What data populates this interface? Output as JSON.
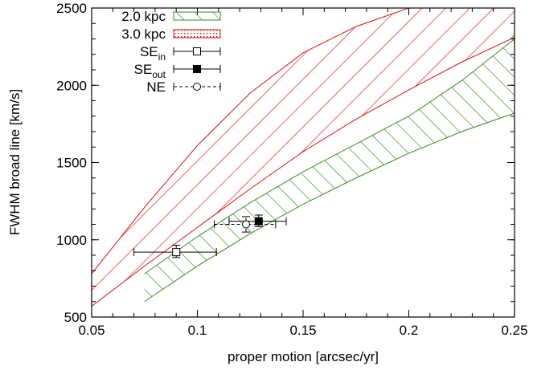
{
  "chart_data": {
    "type": "area",
    "xlabel": "proper motion [arcsec/yr]",
    "ylabel": "FWHM broad line  [km/s]",
    "xlim": [
      0.05,
      0.25
    ],
    "ylim": [
      500,
      2500
    ],
    "xticks": [
      "0.05",
      "0.1",
      "0.15",
      "0.2",
      "0.25"
    ],
    "yticks": [
      "500",
      "1000",
      "1500",
      "2000",
      "2500"
    ],
    "grid": false,
    "legend_position": "top-left",
    "series": [
      {
        "name": "2.0 kpc",
        "kind": "hatched-band",
        "color": "#3a8a1e",
        "x": [
          0.075,
          0.1,
          0.125,
          0.15,
          0.175,
          0.2,
          0.225,
          0.25
        ],
        "lower": [
          600,
          830,
          1040,
          1230,
          1400,
          1560,
          1700,
          1820
        ],
        "upper": [
          780,
          1020,
          1240,
          1440,
          1620,
          1800,
          2030,
          2300
        ]
      },
      {
        "name": "3.0 kpc",
        "kind": "hatched-band",
        "color": "#dd1111",
        "x": [
          0.05,
          0.075,
          0.1,
          0.125,
          0.15,
          0.175,
          0.2,
          0.225,
          0.25
        ],
        "lower": [
          570,
          830,
          1080,
          1330,
          1570,
          1780,
          1970,
          2150,
          2310
        ],
        "upper": [
          780,
          1210,
          1610,
          1950,
          2210,
          2380,
          2500,
          2500,
          2500
        ]
      }
    ],
    "points": [
      {
        "name": "SE",
        "subscript": "in",
        "marker": "open-square",
        "line": "solid",
        "x": 0.09,
        "y": 920,
        "xerr": [
          0.07,
          0.109
        ],
        "yerr": [
          885,
          965
        ]
      },
      {
        "name": "SE",
        "subscript": "out",
        "marker": "filled-square",
        "line": "solid",
        "x": 0.129,
        "y": 1120,
        "xerr": [
          0.115,
          0.142
        ],
        "yerr": [
          1085,
          1160
        ]
      },
      {
        "name": "NE",
        "subscript": "",
        "marker": "open-circle",
        "line": "dashed",
        "x": 0.123,
        "y": 1100,
        "xerr": [
          0.108,
          0.137
        ],
        "yerr": [
          1050,
          1150
        ]
      }
    ]
  }
}
